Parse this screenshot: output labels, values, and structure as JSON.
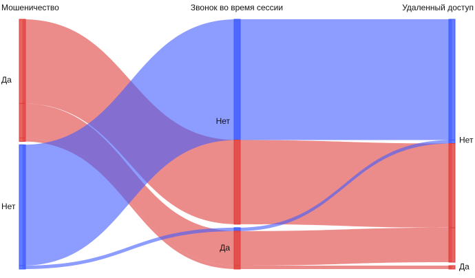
{
  "chart_data": {
    "type": "parallel_categories",
    "dimensions": [
      {
        "label": "Мошеничество",
        "categories": [
          "Да",
          "Нет"
        ]
      },
      {
        "label": "Звонок во время сессии",
        "categories": [
          "Нет",
          "Да"
        ]
      },
      {
        "label": "Удаленный доступ",
        "categories": [
          "Нет",
          "Да"
        ]
      }
    ],
    "counts": [
      [
        [
          122,
          0
        ],
        [
          50,
          5
        ]
      ],
      [
        [
          175,
          0
        ],
        [
          5,
          0
        ]
      ]
    ],
    "colors": [
      "#e0403c",
      "#3f5bff"
    ]
  }
}
